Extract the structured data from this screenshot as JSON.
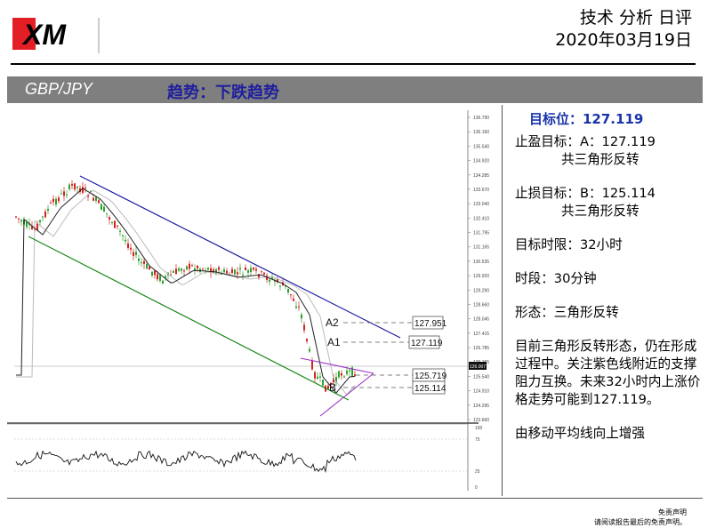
{
  "brand": {
    "logo_text": "XM"
  },
  "header": {
    "title": "技术 分析 日评",
    "date": "2020年03月19日"
  },
  "band": {
    "pair": "GBP/JPY",
    "trend": "趋势：下跌趋势"
  },
  "panel": {
    "target": "目标位：127.119",
    "take_profit": "止盈目标：A：127.119",
    "take_profit_sub": "共三角形反转",
    "stop_loss": "止损目标：B：125.114",
    "stop_loss_sub": "共三角形反转",
    "horizon": "目标时限：32小时",
    "timeframe": "时段：30分钟",
    "pattern": "形态：三角形反转",
    "analysis": "目前三角形反转形态，仍在形成过程中。关注紫色线附近的支撑阻力互换。未来32小时内上涨价格走势可能到127.119。",
    "note": "由移动平均线向上增强"
  },
  "chart_data": {
    "type": "candlestick",
    "price_axis_ticks": [
      "136.790",
      "136.160",
      "135.540",
      "134.920",
      "134.285",
      "133.670",
      "133.040",
      "132.410",
      "131.795",
      "131.165",
      "130.535",
      "129.920",
      "129.290",
      "128.660",
      "128.045",
      "127.415",
      "126.785",
      "126.155",
      "125.540",
      "124.910",
      "124.295",
      "123.660"
    ],
    "current_price_label": "126.007",
    "levels": [
      {
        "name": "A2",
        "value": "127.951"
      },
      {
        "name": "A1",
        "value": "127.119"
      },
      {
        "name": "",
        "value": "125.719"
      },
      {
        "name": "B",
        "value": "125.114"
      }
    ],
    "oscillator_ticks": [
      "100",
      "75",
      "25",
      "0"
    ],
    "colors": {
      "bull": "#2aa02a",
      "bear": "#d42020",
      "ma": "#222222",
      "ma2": "#b5b5b5",
      "channel_top": "#1c1c9e",
      "channel_bottom": "#1a8a1a",
      "triangle": "#9b30c8"
    }
  },
  "footer": {
    "disclaimer_title": "免责声明",
    "disclaimer_text": "请阅读报告最后的免责声明。"
  }
}
